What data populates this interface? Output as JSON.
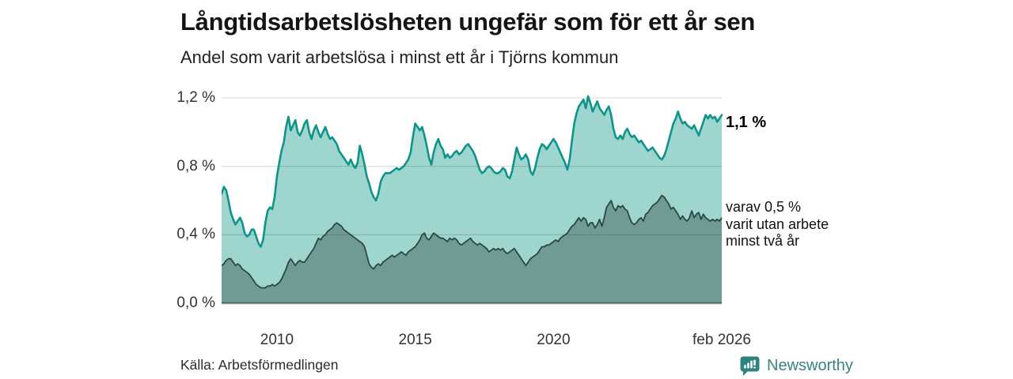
{
  "header": {
    "title": "Långtidsarbetslösheten ungefär som för ett år sen",
    "subtitle": "Andel som varit arbetslösa i minst ett år i Tjörns kommun"
  },
  "annotations": {
    "latest_total": "1,1 %",
    "two_year_lines": [
      "varav 0,5 %",
      "varit utan arbete",
      "minst två år"
    ]
  },
  "footer": {
    "source": "Källa: Arbetsförmedlingen",
    "brand": "Newsworthy"
  },
  "palette": {
    "series1_line": "#0f948a",
    "series1_fill": "#9ed5cf",
    "series2_line": "#2c4742",
    "series2_fill": "#6f9b94",
    "grid": "#000000",
    "baseline": "#14332e",
    "brand_teal": "#37837d",
    "icon_teal": "#2f837d"
  },
  "chart_data": {
    "type": "area",
    "title": "Långtidsarbetslösheten ungefär som för ett år sen",
    "subtitle": "Andel som varit arbetslösa i minst ett år i Tjörns kommun",
    "unit": "%",
    "x_start": 2008.0,
    "x_end": 2026.083,
    "x_step": "monthly",
    "ylim": [
      0,
      1.3
    ],
    "grid": true,
    "legend": "none",
    "y_ticks": [
      {
        "label": "0,0 %",
        "value": 0.0
      },
      {
        "label": "0,4 %",
        "value": 0.4
      },
      {
        "label": "0,8 %",
        "value": 0.8
      },
      {
        "label": "1,2 %",
        "value": 1.2
      }
    ],
    "x_ticks": [
      {
        "label": "2010",
        "year": 2010
      },
      {
        "label": "2015",
        "year": 2015
      },
      {
        "label": "2020",
        "year": 2020
      },
      {
        "label": "feb 2026",
        "year": 2026.083
      }
    ],
    "series": [
      {
        "name": "minst ett år",
        "end_label": "1,1 %",
        "line_color": "#0f948a",
        "fill_color": "#9ed5cf",
        "values": [
          0.64,
          0.68,
          0.66,
          0.6,
          0.53,
          0.49,
          0.46,
          0.48,
          0.5,
          0.47,
          0.41,
          0.39,
          0.4,
          0.43,
          0.43,
          0.39,
          0.35,
          0.33,
          0.37,
          0.47,
          0.54,
          0.56,
          0.55,
          0.62,
          0.74,
          0.82,
          0.89,
          0.94,
          1.03,
          1.09,
          1.01,
          1.04,
          1.07,
          1.0,
          0.98,
          1.01,
          1.05,
          1.07,
          1.0,
          0.96,
          1.01,
          1.04,
          1.0,
          0.97,
          1.0,
          1.03,
          0.99,
          0.96,
          0.97,
          0.95,
          0.93,
          0.89,
          0.87,
          0.85,
          0.83,
          0.81,
          0.84,
          0.81,
          0.79,
          0.82,
          0.92,
          0.87,
          0.81,
          0.74,
          0.7,
          0.65,
          0.62,
          0.6,
          0.64,
          0.71,
          0.74,
          0.76,
          0.76,
          0.76,
          0.77,
          0.78,
          0.79,
          0.78,
          0.79,
          0.8,
          0.82,
          0.84,
          0.88,
          0.97,
          1.05,
          1.03,
          1.01,
          1.03,
          0.98,
          0.92,
          0.85,
          0.81,
          0.88,
          0.93,
          0.96,
          0.92,
          0.9,
          0.85,
          0.87,
          0.85,
          0.86,
          0.88,
          0.89,
          0.87,
          0.88,
          0.9,
          0.92,
          0.93,
          0.91,
          0.89,
          0.86,
          0.82,
          0.78,
          0.76,
          0.77,
          0.79,
          0.8,
          0.79,
          0.77,
          0.76,
          0.76,
          0.77,
          0.79,
          0.78,
          0.74,
          0.73,
          0.77,
          0.84,
          0.91,
          0.87,
          0.84,
          0.85,
          0.87,
          0.84,
          0.77,
          0.75,
          0.79,
          0.85,
          0.9,
          0.93,
          0.92,
          0.9,
          0.92,
          0.94,
          0.96,
          0.94,
          0.91,
          0.88,
          0.85,
          0.82,
          0.78,
          0.84,
          0.95,
          1.05,
          1.11,
          1.15,
          1.17,
          1.19,
          1.14,
          1.21,
          1.17,
          1.12,
          1.15,
          1.18,
          1.14,
          1.12,
          1.1,
          1.13,
          1.15,
          1.1,
          1.02,
          0.97,
          0.96,
          0.98,
          0.96,
          1.0,
          1.02,
          0.99,
          0.97,
          0.98,
          0.96,
          0.94,
          0.95,
          0.93,
          0.91,
          0.89,
          0.9,
          0.91,
          0.89,
          0.87,
          0.85,
          0.84,
          0.86,
          0.9,
          0.95,
          1.0,
          1.05,
          1.08,
          1.12,
          1.08,
          1.05,
          1.06,
          1.04,
          1.03,
          1.02,
          1.04,
          1.01,
          0.98,
          1.02,
          1.06,
          1.1,
          1.08,
          1.1,
          1.08,
          1.09,
          1.06,
          1.08,
          1.1
        ]
      },
      {
        "name": "minst två år",
        "end_label": "varav 0,5 % varit utan arbete minst två år",
        "line_color": "#2c4742",
        "fill_color": "#6f9b94",
        "values": [
          0.22,
          0.23,
          0.25,
          0.26,
          0.26,
          0.24,
          0.22,
          0.23,
          0.22,
          0.2,
          0.19,
          0.18,
          0.17,
          0.15,
          0.13,
          0.11,
          0.1,
          0.09,
          0.09,
          0.09,
          0.1,
          0.1,
          0.11,
          0.1,
          0.11,
          0.12,
          0.14,
          0.17,
          0.2,
          0.24,
          0.26,
          0.24,
          0.22,
          0.24,
          0.25,
          0.24,
          0.24,
          0.26,
          0.28,
          0.3,
          0.32,
          0.35,
          0.38,
          0.37,
          0.39,
          0.4,
          0.42,
          0.43,
          0.44,
          0.46,
          0.47,
          0.46,
          0.45,
          0.43,
          0.42,
          0.41,
          0.4,
          0.39,
          0.38,
          0.37,
          0.36,
          0.35,
          0.33,
          0.28,
          0.23,
          0.21,
          0.2,
          0.22,
          0.23,
          0.22,
          0.24,
          0.25,
          0.26,
          0.27,
          0.28,
          0.27,
          0.28,
          0.29,
          0.3,
          0.29,
          0.28,
          0.3,
          0.31,
          0.32,
          0.33,
          0.35,
          0.37,
          0.4,
          0.41,
          0.38,
          0.37,
          0.39,
          0.41,
          0.4,
          0.39,
          0.38,
          0.38,
          0.37,
          0.36,
          0.38,
          0.37,
          0.38,
          0.37,
          0.35,
          0.34,
          0.35,
          0.36,
          0.37,
          0.38,
          0.36,
          0.35,
          0.34,
          0.35,
          0.34,
          0.33,
          0.32,
          0.3,
          0.31,
          0.32,
          0.31,
          0.32,
          0.31,
          0.32,
          0.3,
          0.29,
          0.3,
          0.31,
          0.32,
          0.3,
          0.28,
          0.26,
          0.24,
          0.22,
          0.24,
          0.26,
          0.27,
          0.28,
          0.29,
          0.31,
          0.33,
          0.33,
          0.34,
          0.34,
          0.35,
          0.36,
          0.37,
          0.36,
          0.38,
          0.39,
          0.4,
          0.41,
          0.43,
          0.45,
          0.46,
          0.48,
          0.5,
          0.48,
          0.5,
          0.49,
          0.45,
          0.47,
          0.47,
          0.44,
          0.46,
          0.49,
          0.45,
          0.5,
          0.56,
          0.58,
          0.6,
          0.56,
          0.54,
          0.57,
          0.56,
          0.57,
          0.55,
          0.54,
          0.5,
          0.47,
          0.46,
          0.47,
          0.49,
          0.5,
          0.48,
          0.52,
          0.53,
          0.55,
          0.57,
          0.58,
          0.59,
          0.61,
          0.63,
          0.62,
          0.6,
          0.58,
          0.55,
          0.56,
          0.54,
          0.52,
          0.49,
          0.51,
          0.49,
          0.48,
          0.5,
          0.54,
          0.5,
          0.52,
          0.53,
          0.49,
          0.52,
          0.5,
          0.49,
          0.48,
          0.49,
          0.48,
          0.49,
          0.48,
          0.5
        ]
      }
    ]
  }
}
